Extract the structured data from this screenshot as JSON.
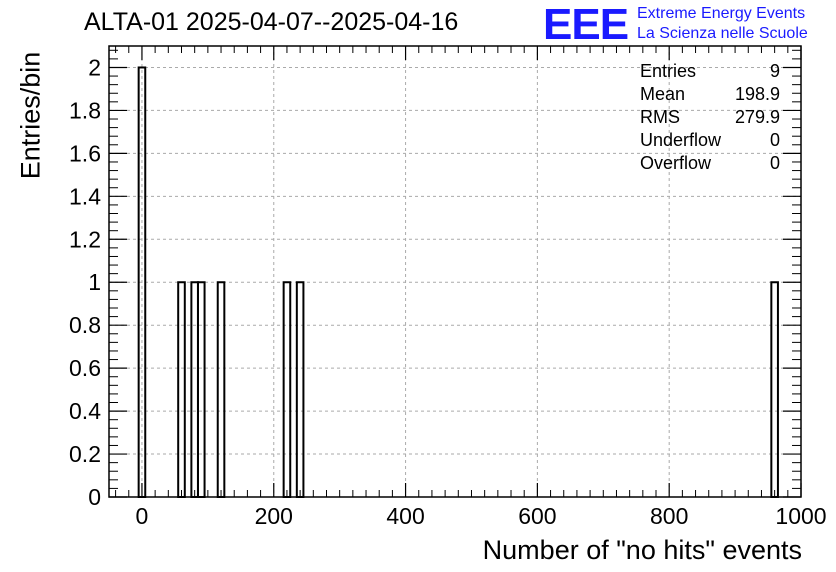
{
  "chart_data": {
    "type": "bar",
    "title": "ALTA-01 2025-04-07--2025-04-16",
    "xlabel": "Number of \"no hits\" events",
    "ylabel": "Entries/bin",
    "xlim": [
      -50,
      1000
    ],
    "ylim": [
      0,
      2.1
    ],
    "xticks": [
      "0",
      "200",
      "400",
      "600",
      "800",
      "1000"
    ],
    "yticks": [
      "0",
      "0.2",
      "0.4",
      "0.6",
      "0.8",
      "1",
      "1.2",
      "1.4",
      "1.6",
      "1.8",
      "2"
    ],
    "grid": true,
    "bin_width": 10,
    "bins": [
      {
        "low": -5,
        "high": 5,
        "value": 2
      },
      {
        "low": 55,
        "high": 65,
        "value": 1
      },
      {
        "low": 75,
        "high": 85,
        "value": 1
      },
      {
        "low": 85,
        "high": 95,
        "value": 1
      },
      {
        "low": 115,
        "high": 125,
        "value": 1
      },
      {
        "low": 215,
        "high": 225,
        "value": 1
      },
      {
        "low": 235,
        "high": 245,
        "value": 1
      },
      {
        "low": 955,
        "high": 965,
        "value": 1
      }
    ],
    "stats": [
      {
        "label": "Entries",
        "value": "9"
      },
      {
        "label": "Mean",
        "value": "198.9"
      },
      {
        "label": "RMS",
        "value": "279.9"
      },
      {
        "label": "Underflow",
        "value": "0"
      },
      {
        "label": "Overflow",
        "value": "0"
      }
    ]
  },
  "logo": {
    "mark": "EEE",
    "line1": "Extreme Energy Events",
    "line2": "La Scienza nelle Scuole",
    "color": "#1a1aff"
  }
}
